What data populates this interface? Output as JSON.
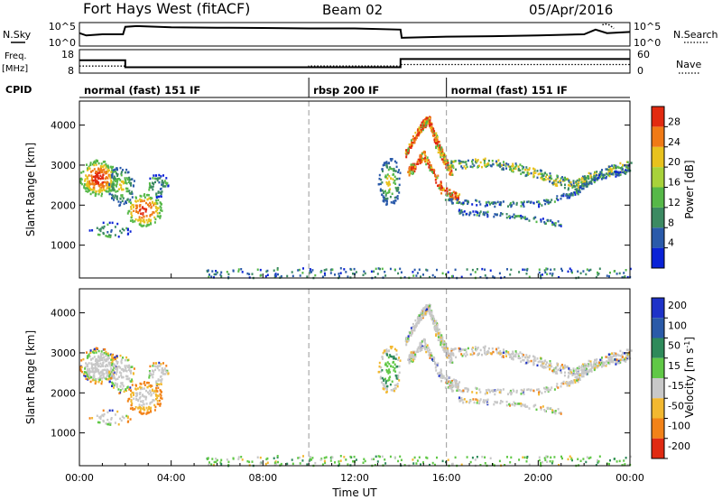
{
  "header": {
    "station": "Fort Hays West (fitACF)",
    "beam": "Beam 02",
    "date": "05/Apr/2016"
  },
  "panels": {
    "nsky_label": "N.Sky",
    "nsearch_label": "N.Search",
    "freq_label_1": "Freq.",
    "freq_label_2": "[MHz]",
    "nave_label": "Nave",
    "cpid_label": "CPID"
  },
  "cpid_segments": [
    {
      "label": "normal (fast) 151 IF",
      "start": 0.0,
      "end": 10.0
    },
    {
      "label": "rbsp 200 IF",
      "start": 10.0,
      "end": 16.0
    },
    {
      "label": "normal (fast) 151 IF",
      "start": 16.0,
      "end": 24.0
    }
  ],
  "chart_data": [
    {
      "type": "line",
      "name": "noise",
      "left_ticks": [
        "10^5",
        "10^0"
      ],
      "right_ticks": [
        "10^5",
        "10^0"
      ],
      "nsky": [
        [
          0,
          0.55
        ],
        [
          0.3,
          0.45
        ],
        [
          1.0,
          0.5
        ],
        [
          1.9,
          0.5
        ],
        [
          2.0,
          0.82
        ],
        [
          2.5,
          0.85
        ],
        [
          4,
          0.8
        ],
        [
          6,
          0.78
        ],
        [
          8,
          0.77
        ],
        [
          10,
          0.75
        ],
        [
          12,
          0.75
        ],
        [
          14,
          0.7
        ],
        [
          14.05,
          0.35
        ],
        [
          16,
          0.4
        ],
        [
          18,
          0.42
        ],
        [
          20,
          0.45
        ],
        [
          22,
          0.5
        ],
        [
          22.5,
          0.7
        ],
        [
          23,
          0.55
        ],
        [
          24,
          0.6
        ]
      ],
      "nsearch_dotted": [
        [
          22.8,
          0.9
        ],
        [
          22.9,
          0.95
        ],
        [
          23.1,
          0.9
        ],
        [
          23.3,
          0.75
        ]
      ]
    },
    {
      "type": "line",
      "name": "freq-nave",
      "left_ticks": [
        "18",
        "8"
      ],
      "right_ticks": [
        "60",
        "0"
      ],
      "freq": [
        [
          0,
          13.5
        ],
        [
          2,
          13.5
        ],
        [
          2,
          10.5
        ],
        [
          14,
          10.5
        ],
        [
          14,
          14
        ],
        [
          24,
          14
        ]
      ],
      "nave": [
        [
          0,
          18
        ],
        [
          2,
          18
        ],
        [
          2,
          15
        ],
        [
          10,
          15
        ],
        [
          10,
          18
        ],
        [
          14,
          18
        ],
        [
          14,
          22
        ],
        [
          24,
          22
        ]
      ]
    },
    {
      "type": "heatmap",
      "name": "power",
      "ylabel": "Slant Range [km]",
      "y_ticks": [
        1000,
        2000,
        3000,
        4000
      ],
      "ylim": [
        180,
        4600
      ],
      "colorbar_label": "Power [dB]",
      "colorbar_ticks": [
        4,
        8,
        12,
        16,
        20,
        24,
        28
      ],
      "colorbar_range": [
        0,
        32
      ],
      "colors": [
        "#0a22d6",
        "#2a5aaa",
        "#3c8a62",
        "#56b848",
        "#a8d23a",
        "#e8c21e",
        "#f07a16",
        "#e22a10"
      ]
    },
    {
      "type": "heatmap",
      "name": "velocity",
      "ylabel": "Slant Range [km]",
      "y_ticks": [
        1000,
        2000,
        3000,
        4000
      ],
      "ylim": [
        180,
        4600
      ],
      "xlabel": "Time UT",
      "x_ticks": [
        "00:00",
        "04:00",
        "08:00",
        "12:00",
        "16:00",
        "20:00",
        "00:00"
      ],
      "xlim": [
        0,
        24
      ],
      "colorbar_label": "Velocity [m s",
      "colorbar_label_sup": "-1",
      "colorbar_label_end": "]",
      "colorbar_ticks": [
        "200",
        "100",
        "50",
        "15",
        "-15",
        "-50",
        "-100",
        "-200"
      ],
      "colors": [
        "#1e32c8",
        "#2a5aa8",
        "#2e8a5a",
        "#60c846",
        "#c8c8c8",
        "#f2b830",
        "#f28218",
        "#e02a12"
      ]
    }
  ]
}
